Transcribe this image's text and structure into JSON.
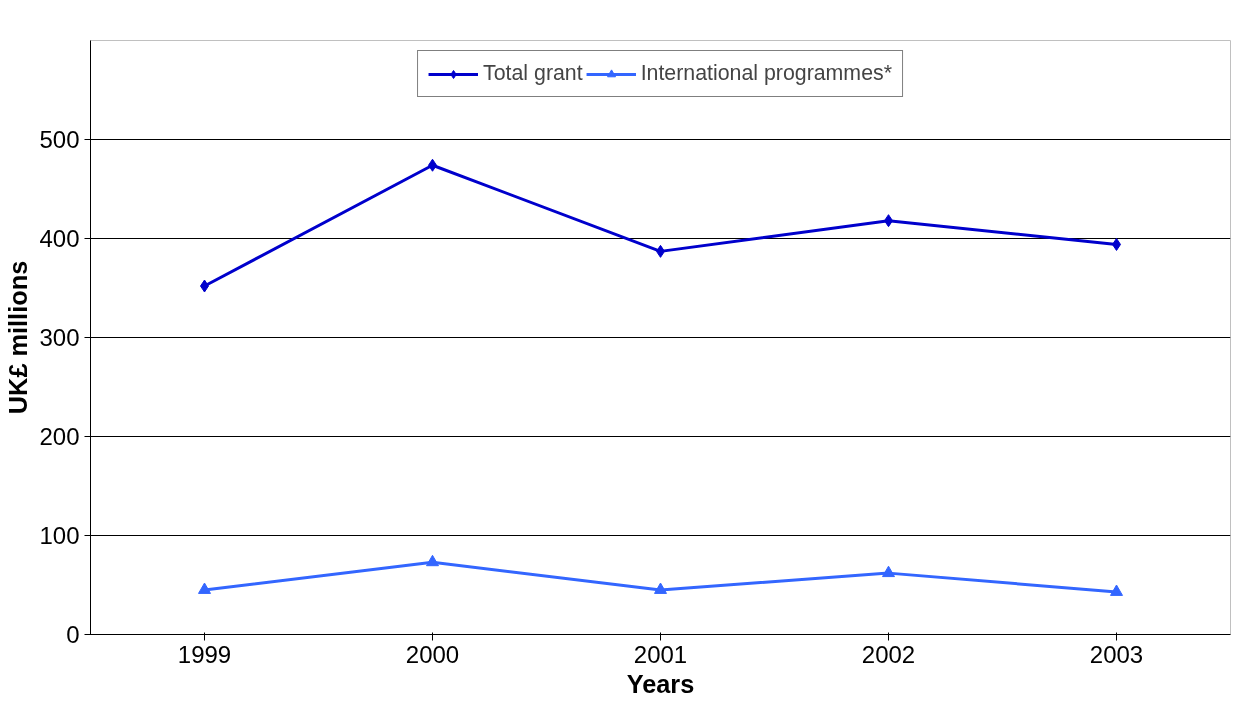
{
  "chart_data": {
    "type": "line",
    "xlabel": "Years",
    "ylabel": "UK£ millions",
    "categories": [
      "1999",
      "2000",
      "2001",
      "2002",
      "2003"
    ],
    "series": [
      {
        "name": "Total grant",
        "color": "#0000cc",
        "marker": "diamond",
        "values": [
          352,
          474,
          387,
          418,
          394
        ]
      },
      {
        "name": "International programmes*",
        "color": "#3366ff",
        "marker": "triangle",
        "values": [
          45,
          73,
          45,
          62,
          43
        ]
      }
    ],
    "ylim": [
      0,
      600
    ],
    "yticks": [
      0,
      100,
      200,
      300,
      400,
      500
    ],
    "grid": "y",
    "legend": "top",
    "line_style": "solid"
  }
}
